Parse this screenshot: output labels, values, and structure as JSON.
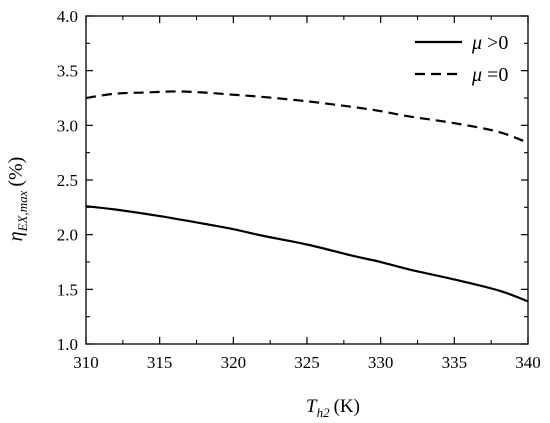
{
  "chart_data": {
    "type": "line",
    "xlabel": {
      "main": "T",
      "sub": "h2",
      "unit": "(K)"
    },
    "ylabel": {
      "main": "η",
      "sub": "EX,max",
      "unit": "(%)"
    },
    "xlim": [
      310,
      340
    ],
    "ylim": [
      1.0,
      4.0
    ],
    "x_ticks": [
      "310",
      "315",
      "320",
      "325",
      "330",
      "335",
      "340"
    ],
    "y_ticks": [
      "1.0",
      "1.5",
      "2.0",
      "2.5",
      "3.0",
      "3.5",
      "4.0"
    ],
    "grid": false,
    "legend_position": "top-right",
    "series": [
      {
        "name": "μ >0",
        "symbol": "μ",
        "condition": ">0",
        "style": "solid",
        "color": "#000000",
        "x": [
          310,
          312,
          315,
          318,
          320,
          322,
          325,
          328,
          330,
          332,
          335,
          338,
          340
        ],
        "y": [
          2.26,
          2.23,
          2.17,
          2.1,
          2.05,
          1.99,
          1.91,
          1.81,
          1.75,
          1.68,
          1.59,
          1.49,
          1.39
        ]
      },
      {
        "name": "μ =0",
        "symbol": "μ",
        "condition": "=0",
        "style": "dashed",
        "color": "#000000",
        "x": [
          310,
          312,
          314,
          316,
          318,
          320,
          322,
          325,
          328,
          330,
          332,
          335,
          338,
          340
        ],
        "y": [
          3.25,
          3.29,
          3.3,
          3.31,
          3.3,
          3.28,
          3.26,
          3.22,
          3.17,
          3.13,
          3.08,
          3.02,
          2.94,
          2.84
        ]
      }
    ]
  }
}
